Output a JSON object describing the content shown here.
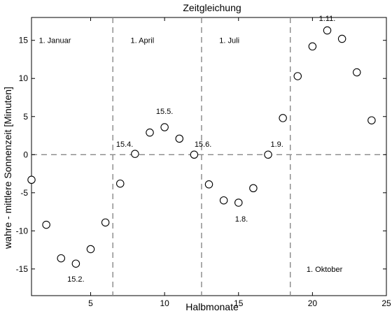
{
  "chart_data": {
    "type": "scatter",
    "title": "Zeitgleichung",
    "xlabel": "Halbmonate",
    "ylabel": "wahre - mittlere Sonnenzeit [Minuten]",
    "xlim": [
      1,
      25
    ],
    "ylim": [
      -18.5,
      18
    ],
    "xticks": [
      5,
      10,
      15,
      20,
      25
    ],
    "yticks": [
      -15,
      -10,
      -5,
      0,
      5,
      10,
      15
    ],
    "x": [
      1,
      2,
      3,
      4,
      5,
      6,
      7,
      8,
      9,
      10,
      11,
      12,
      13,
      14,
      15,
      16,
      17,
      18,
      19,
      20,
      21,
      22,
      23,
      24
    ],
    "y": [
      -3.3,
      -9.2,
      -13.6,
      -14.3,
      -12.4,
      -8.9,
      -3.8,
      0.1,
      2.9,
      3.6,
      2.1,
      0.0,
      -3.9,
      -6.0,
      -6.3,
      -4.4,
      0.0,
      4.8,
      10.3,
      14.2,
      16.3,
      15.2,
      10.8,
      4.5
    ],
    "reference_lines": {
      "vertical_x": [
        6.5,
        12.5,
        18.5
      ],
      "horizontal_y": [
        0
      ]
    },
    "season_labels": [
      {
        "text": "1. Januar",
        "x": 1.5,
        "y": 15
      },
      {
        "text": "1. April",
        "x": 7.7,
        "y": 15
      },
      {
        "text": "1. Juli",
        "x": 13.7,
        "y": 15
      },
      {
        "text": "1. Oktober",
        "x": 19.6,
        "y": -15
      }
    ],
    "annotations": [
      {
        "text": "15.2.",
        "x": 4,
        "y": -16.3
      },
      {
        "text": "15.4.",
        "x": 7.3,
        "y": 1.4
      },
      {
        "text": "15.5.",
        "x": 10,
        "y": 5.7
      },
      {
        "text": "15.6.",
        "x": 12.6,
        "y": 1.4
      },
      {
        "text": "1.8.",
        "x": 15.2,
        "y": -8.4
      },
      {
        "text": "1.9.",
        "x": 17.6,
        "y": 1.4
      },
      {
        "text": "1.11.",
        "x": 21,
        "y": 17.9
      }
    ],
    "grid": false,
    "marker": "open-circle"
  }
}
